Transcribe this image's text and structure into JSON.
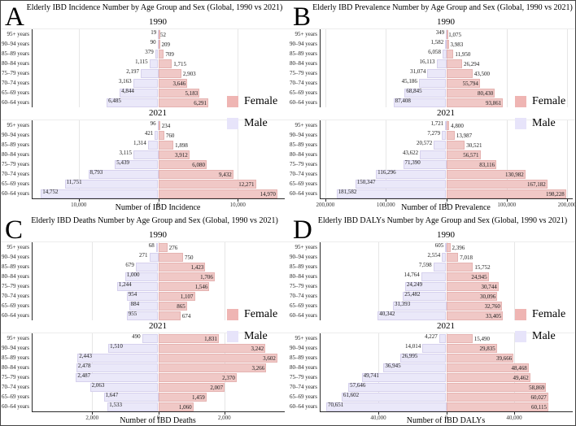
{
  "legend": {
    "female": "Female",
    "male": "Male"
  },
  "colors": {
    "female_bar": "#f0c8c6",
    "male_bar": "#eae8f9",
    "female_legend": "#efb5b3",
    "male_legend": "#e7e4fa",
    "spine": "#2b2b2b",
    "gridline": "#e6e6e6"
  },
  "age_groups": [
    "95+ years",
    "90–94 years",
    "85–89 years",
    "80–84 years",
    "75–79 years",
    "70–74 years",
    "65–69 years",
    "60–64 years"
  ],
  "chart_data": [
    {
      "type": "bar",
      "subtype": "population-pyramid",
      "panel_letter": "A",
      "title": "Elderly IBD Incidence Number by Age Group and Sex (Global, 1990 vs 2021)",
      "xlabel": "Number of IBD Incidence",
      "xmax": 15800,
      "ticks": [
        {
          "v": -10000,
          "label": "10,000"
        },
        {
          "v": 0,
          "label": "0"
        },
        {
          "v": 10000,
          "label": "10,000"
        }
      ],
      "years": [
        {
          "year": "1990",
          "male": [
            19,
            90,
            379,
            1115,
            2197,
            3163,
            4844,
            6485
          ],
          "female": [
            52,
            209,
            709,
            1715,
            2903,
            3646,
            5183,
            6291
          ]
        },
        {
          "year": "2021",
          "male": [
            96,
            421,
            1314,
            3115,
            5439,
            8793,
            11751,
            14752
          ],
          "female": [
            234,
            760,
            1898,
            3912,
            6080,
            9432,
            12271,
            14970
          ]
        }
      ]
    },
    {
      "type": "bar",
      "subtype": "population-pyramid",
      "panel_letter": "B",
      "title": "Elderly IBD Prevalence Number by Age Group and Sex (Global, 1990 vs 2021)",
      "xlabel": "Number of IBD Prevalence",
      "xmax": 208000,
      "ticks": [
        {
          "v": -200000,
          "label": "200,000"
        },
        {
          "v": -100000,
          "label": "100,000"
        },
        {
          "v": 0,
          "label": "0"
        },
        {
          "v": 100000,
          "label": "100,000"
        },
        {
          "v": 200000,
          "label": "200,000"
        }
      ],
      "years": [
        {
          "year": "1990",
          "male": [
            349,
            1582,
            6058,
            16113,
            31074,
            45186,
            68845,
            87408
          ],
          "female": [
            1075,
            3983,
            11950,
            26294,
            43500,
            55794,
            80430,
            93861
          ]
        },
        {
          "year": "2021",
          "male": [
            1721,
            7279,
            20572,
            43622,
            71390,
            116296,
            150347,
            181582
          ],
          "female": [
            4800,
            13987,
            30521,
            56571,
            83116,
            130982,
            167182,
            198228
          ]
        }
      ]
    },
    {
      "type": "bar",
      "subtype": "population-pyramid",
      "panel_letter": "C",
      "title": "Elderly IBD Deaths Number by Age Group and Sex (Global, 1990 vs 2021)",
      "xlabel": "Number of IBD Deaths",
      "xmax": 3800,
      "ticks": [
        {
          "v": -2000,
          "label": "2,000"
        },
        {
          "v": 0,
          "label": "0"
        },
        {
          "v": 2000,
          "label": "2,000"
        }
      ],
      "years": [
        {
          "year": "1990",
          "male": [
            68,
            271,
            679,
            1000,
            1244,
            954,
            884,
            955
          ],
          "female": [
            276,
            750,
            1423,
            1706,
            1546,
            1107,
            865,
            674
          ]
        },
        {
          "year": "2021",
          "male": [
            490,
            1510,
            2443,
            2478,
            2487,
            2063,
            1647,
            1533
          ],
          "female": [
            1831,
            3242,
            3602,
            3266,
            2370,
            2007,
            1459,
            1060
          ]
        }
      ]
    },
    {
      "type": "bar",
      "subtype": "population-pyramid",
      "panel_letter": "D",
      "title": "Elderly IBD DALYs Number by Age Group and Sex (Global, 1990 vs 2021)",
      "xlabel": "Number of IBD DALYs",
      "xmax": 74000,
      "ticks": [
        {
          "v": -40000,
          "label": "40,000"
        },
        {
          "v": 0,
          "label": "0"
        },
        {
          "v": 40000,
          "label": "40,000"
        }
      ],
      "years": [
        {
          "year": "1990",
          "male": [
            605,
            2554,
            7598,
            14764,
            24249,
            25482,
            31393,
            40342
          ],
          "female": [
            2396,
            7018,
            15752,
            24945,
            30744,
            30096,
            32760,
            33405
          ]
        },
        {
          "year": "2021",
          "male": [
            4227,
            14014,
            26995,
            36945,
            49741,
            57646,
            61602,
            70651
          ],
          "female": [
            15490,
            29835,
            39666,
            48468,
            49462,
            58869,
            60027,
            60115
          ]
        }
      ]
    }
  ]
}
